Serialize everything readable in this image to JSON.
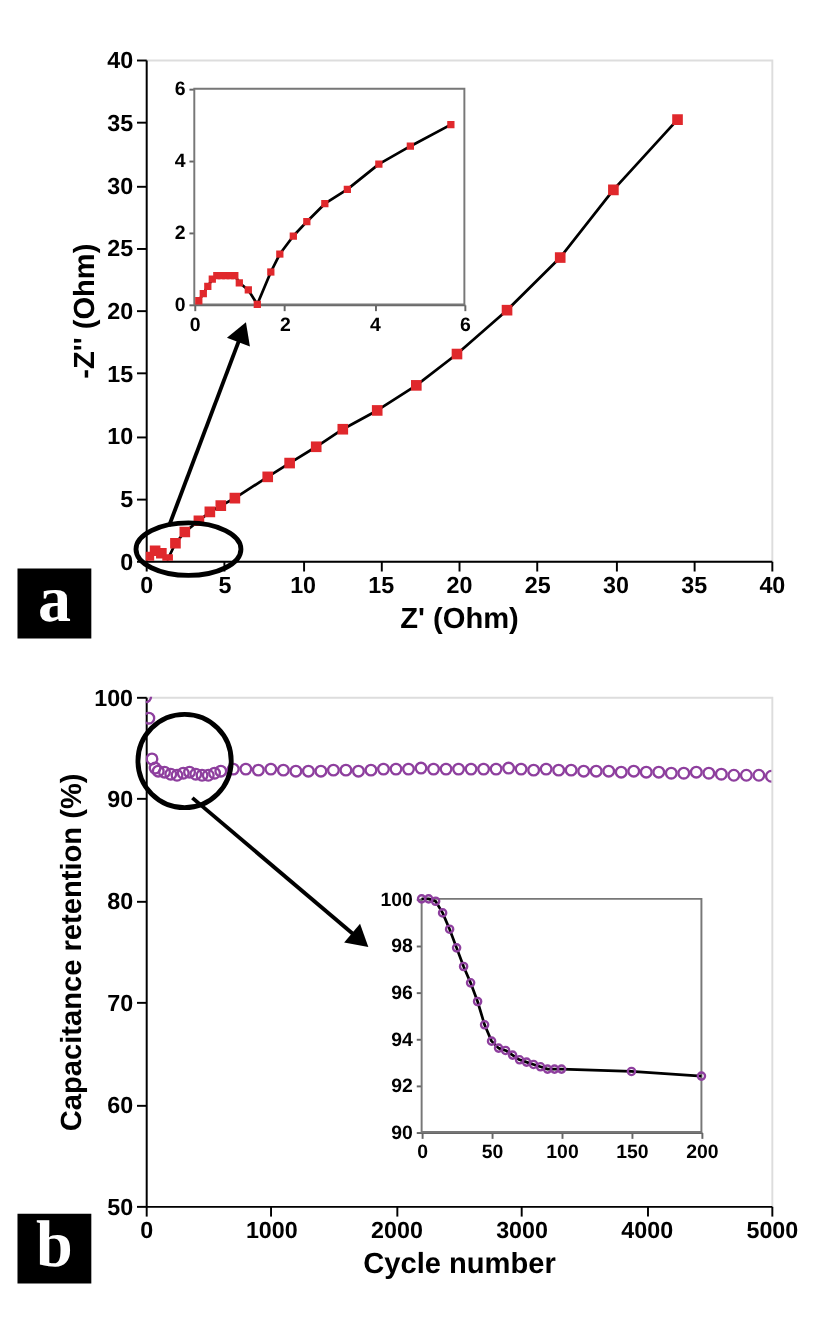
{
  "chart_data": [
    {
      "type": "line",
      "xlabel": "Z' (Ohm)",
      "ylabel": "-Z'' (Ohm)",
      "xlim": [
        0,
        40
      ],
      "ylim": [
        0,
        40
      ],
      "xticks": [
        0,
        5,
        10,
        15,
        20,
        25,
        30,
        35,
        40
      ],
      "yticks": [
        0,
        5,
        10,
        15,
        20,
        25,
        30,
        35,
        40
      ],
      "marker": "square",
      "grid": false,
      "annotations": [
        "a"
      ],
      "x": [
        0.2,
        0.6,
        1.0,
        1.4,
        1.9,
        2.5,
        3.4,
        4.1,
        4.8,
        5.7,
        7.8,
        9.2,
        10.9,
        12.6,
        14.8,
        17.3,
        19.9,
        23.1,
        26.5,
        29.9,
        34.0
      ],
      "series": [
        {
          "color": "#e0282c",
          "values": [
            0.3,
            0.8,
            0.6,
            0.1,
            1.4,
            2.3,
            3.2,
            3.9,
            4.4,
            5.0,
            6.7,
            7.8,
            9.1,
            10.5,
            12.0,
            14.0,
            16.5,
            20.0,
            24.2,
            29.6,
            35.2
          ]
        }
      ]
    },
    {
      "type": "line",
      "xlim": [
        0,
        6
      ],
      "ylim": [
        0,
        6
      ],
      "xticks": [
        0,
        2,
        4,
        6
      ],
      "yticks": [
        0,
        2,
        4,
        6
      ],
      "marker": "square",
      "grid": false,
      "x": [
        0.1,
        0.2,
        0.3,
        0.4,
        0.5,
        0.6,
        0.7,
        0.8,
        0.9,
        1.0,
        1.2,
        1.4,
        1.7,
        1.9,
        2.2,
        2.5,
        2.9,
        3.4,
        4.1,
        4.8,
        5.7
      ],
      "series": [
        {
          "color": "#e0282c",
          "values": [
            0.1,
            0.3,
            0.5,
            0.7,
            0.8,
            0.8,
            0.8,
            0.8,
            0.8,
            0.6,
            0.4,
            0.0,
            0.9,
            1.4,
            1.9,
            2.3,
            2.8,
            3.2,
            3.9,
            4.4,
            5.0
          ]
        }
      ]
    },
    {
      "type": "scatter",
      "xlabel": "Cycle number",
      "ylabel": "Capacitance retention (%)",
      "xlim": [
        0,
        5000
      ],
      "ylim": [
        50,
        100
      ],
      "xticks": [
        0,
        1000,
        2000,
        3000,
        4000,
        5000
      ],
      "yticks": [
        50,
        60,
        70,
        80,
        90,
        100
      ],
      "marker": "circle",
      "grid": false,
      "annotations": [
        "b"
      ],
      "x": [
        0,
        25,
        50,
        75,
        100,
        150,
        200,
        250,
        300,
        350,
        400,
        450,
        500,
        550,
        600,
        700,
        800,
        900,
        1000,
        1100,
        1200,
        1300,
        1400,
        1500,
        1600,
        1700,
        1800,
        1900,
        2000,
        2100,
        2200,
        2300,
        2400,
        2500,
        2600,
        2700,
        2800,
        2900,
        3000,
        3100,
        3200,
        3300,
        3400,
        3500,
        3600,
        3700,
        3800,
        3900,
        4000,
        4100,
        4200,
        4300,
        4400,
        4500,
        4600,
        4700,
        4800,
        4900,
        5000
      ],
      "series": [
        {
          "color": "#8e3f9e",
          "values": [
            100,
            97.9,
            93.9,
            93.0,
            92.7,
            92.6,
            92.4,
            92.3,
            92.5,
            92.6,
            92.4,
            92.3,
            92.3,
            92.5,
            92.7,
            92.9,
            92.9,
            92.8,
            92.9,
            92.8,
            92.7,
            92.7,
            92.7,
            92.8,
            92.8,
            92.7,
            92.8,
            92.9,
            92.9,
            92.9,
            93.0,
            92.9,
            92.9,
            92.9,
            92.9,
            92.9,
            92.9,
            93.0,
            92.9,
            92.8,
            92.9,
            92.8,
            92.8,
            92.7,
            92.7,
            92.7,
            92.6,
            92.7,
            92.6,
            92.6,
            92.5,
            92.5,
            92.6,
            92.5,
            92.4,
            92.3,
            92.3,
            92.3,
            92.2
          ]
        }
      ]
    },
    {
      "type": "line",
      "xlim": [
        0,
        200
      ],
      "ylim": [
        90,
        100
      ],
      "xticks": [
        0,
        50,
        100,
        150,
        200
      ],
      "yticks": [
        90,
        92,
        94,
        96,
        98,
        100
      ],
      "marker": "circle",
      "grid": false,
      "x": [
        0,
        5,
        10,
        15,
        20,
        25,
        30,
        35,
        40,
        45,
        50,
        55,
        60,
        65,
        70,
        75,
        80,
        85,
        90,
        95,
        100,
        150,
        200
      ],
      "series": [
        {
          "color": "#8e3f9e",
          "values": [
            100,
            100,
            99.9,
            99.4,
            98.7,
            97.9,
            97.1,
            96.4,
            95.6,
            94.6,
            93.9,
            93.6,
            93.5,
            93.3,
            93.1,
            93.0,
            92.9,
            92.8,
            92.7,
            92.7,
            92.7,
            92.6,
            92.4
          ]
        }
      ]
    }
  ]
}
